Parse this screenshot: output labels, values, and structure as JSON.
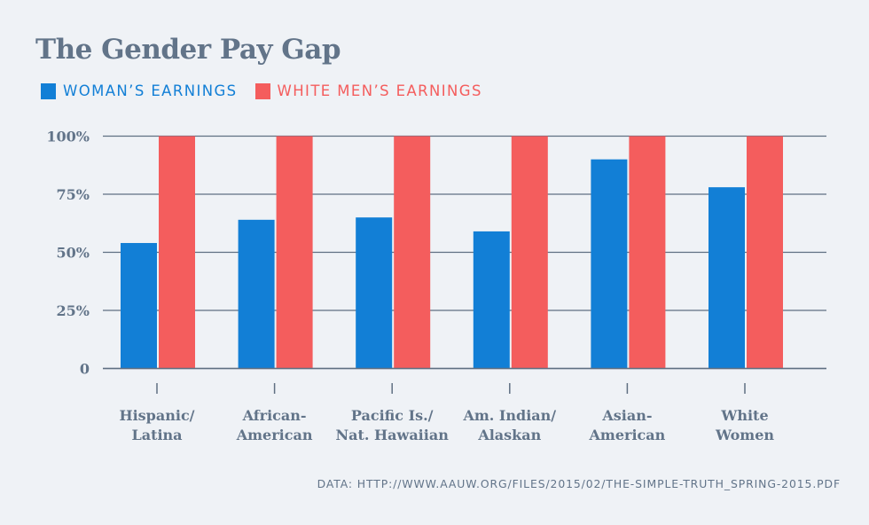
{
  "chart_data": {
    "type": "bar",
    "title": "The Gender Pay Gap",
    "categories": [
      [
        "Hispanic/",
        "Latina"
      ],
      [
        "African-",
        "American"
      ],
      [
        "Pacific Is./",
        "Nat. Hawaiian"
      ],
      [
        "Am. Indian/",
        "Alaskan"
      ],
      [
        "Asian-",
        "American"
      ],
      [
        "White",
        "Women"
      ]
    ],
    "series": [
      {
        "name": "WOMAN’S EARNINGS",
        "color": "#127fd6",
        "values": [
          54,
          64,
          65,
          59,
          90,
          78
        ]
      },
      {
        "name": "WHITE MEN’S EARNINGS",
        "color": "#f45d5d",
        "values": [
          100,
          100,
          100,
          100,
          100,
          100
        ]
      }
    ],
    "yticks": [
      {
        "value": 0,
        "label": "0"
      },
      {
        "value": 25,
        "label": "25%"
      },
      {
        "value": 50,
        "label": "50%"
      },
      {
        "value": 75,
        "label": "75%"
      },
      {
        "value": 100,
        "label": "100%"
      }
    ],
    "ylim": [
      0,
      100
    ],
    "xlabel": "",
    "ylabel": "",
    "grid": true,
    "legend_position": "top-left",
    "source": "DATA: HTTP://WWW.AAUW.ORG/FILES/2015/02/THE-SIMPLE-TRUTH_SPRING-2015.PDF",
    "colors": {
      "grid": "#5f6f82",
      "text": "#627489",
      "background": "#eff2f6"
    }
  }
}
